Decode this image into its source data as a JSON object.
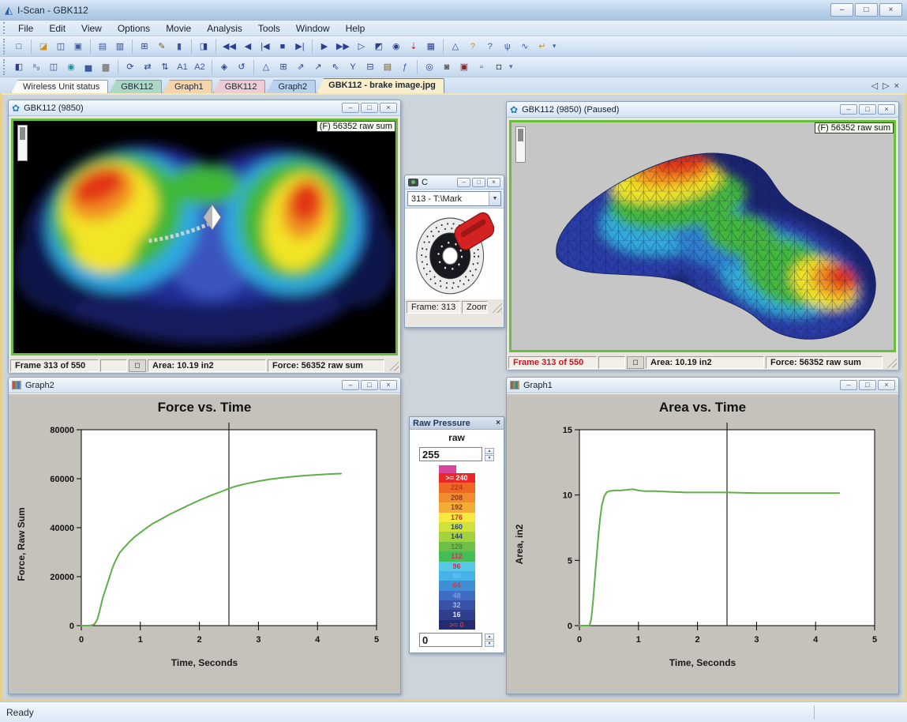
{
  "app": {
    "title": "I-Scan - GBK112",
    "logo_glyph": "◭",
    "status": "Ready"
  },
  "window_controls": {
    "minimize": "–",
    "maximize": "□",
    "close": "×"
  },
  "menu": {
    "items": [
      "File",
      "Edit",
      "View",
      "Options",
      "Movie",
      "Analysis",
      "Tools",
      "Window",
      "Help"
    ]
  },
  "toolbar1": {
    "icons": [
      {
        "n": "new-file",
        "g": "□"
      },
      {
        "n": "open-file",
        "g": "◪",
        "c": "#c89020",
        "s": 1
      },
      {
        "n": "open-remote",
        "g": "◫"
      },
      {
        "n": "save",
        "g": "▣",
        "c": "#3b5aa0"
      },
      {
        "n": "print",
        "g": "▤",
        "c": "#3b5aa0",
        "s": 1
      },
      {
        "n": "print-preview",
        "g": "▥"
      },
      {
        "n": "copy",
        "g": "⊞",
        "s": 1
      },
      {
        "n": "copy-graphics",
        "g": "✎",
        "c": "#7a5a20"
      },
      {
        "n": "cell-column",
        "g": "▮",
        "c": "#3b5aa0"
      },
      {
        "n": "equilibrate",
        "g": "◨",
        "s": 1
      },
      {
        "n": "rewind",
        "g": "◀◀",
        "s": 1
      },
      {
        "n": "frame-back",
        "g": "◀"
      },
      {
        "n": "first-frame",
        "g": "|◀"
      },
      {
        "n": "stop",
        "g": "■"
      },
      {
        "n": "last-frame",
        "g": "▶|"
      },
      {
        "n": "play",
        "g": "▶",
        "s": 1
      },
      {
        "n": "fast-forward",
        "g": "▶▶"
      },
      {
        "n": "play-to-marker",
        "g": "▷"
      },
      {
        "n": "movie-options",
        "g": "◩"
      },
      {
        "n": "find-frame",
        "g": "◉"
      },
      {
        "n": "threshold-down",
        "g": "⇣",
        "c": "#c02020"
      },
      {
        "n": "frame-list",
        "g": "▦"
      },
      {
        "n": "angle-graph",
        "g": "△",
        "s": 1
      },
      {
        "n": "help",
        "g": "?",
        "c": "#c89800"
      },
      {
        "n": "context-help",
        "g": "?",
        "c": "#3b5aa0"
      },
      {
        "n": "wireless",
        "g": "ψ",
        "c": "#3b5aa0"
      },
      {
        "n": "signal",
        "g": "∿",
        "c": "#3b5aa0"
      },
      {
        "n": "exit",
        "g": "↵",
        "c": "#c89020"
      }
    ]
  },
  "toolbar2": {
    "icons": [
      {
        "n": "contrast",
        "g": "◧"
      },
      {
        "n": "decimal-display",
        "g": "⁸₉",
        "c": "#3b5aa0"
      },
      {
        "n": "cell-grid",
        "g": "◫"
      },
      {
        "n": "drop-marker",
        "g": "◉",
        "c": "#2090a0"
      },
      {
        "n": "bar-graph-1",
        "g": "▅",
        "c": "#3b5aa0"
      },
      {
        "n": "bar-graph-2",
        "g": "▆",
        "c": "#8a8a8a"
      },
      {
        "n": "rotate",
        "g": "⟳",
        "s": 1
      },
      {
        "n": "swap-horizontal",
        "g": "⇄"
      },
      {
        "n": "swap-vertical",
        "g": "⇅"
      },
      {
        "n": "average-1",
        "g": "A1",
        "c": "#3b5aa0"
      },
      {
        "n": "average-2",
        "g": "A2",
        "c": "#3b5aa0"
      },
      {
        "n": "orient",
        "g": "◈",
        "s": 1
      },
      {
        "n": "rotate-left",
        "g": "↺"
      },
      {
        "n": "peak",
        "g": "△",
        "s": 1
      },
      {
        "n": "grid-view",
        "g": "⊞"
      },
      {
        "n": "graph-up",
        "g": "⇗"
      },
      {
        "n": "graph-open",
        "g": "↗"
      },
      {
        "n": "graph-pointer",
        "g": "⇖"
      },
      {
        "n": "split-y",
        "g": "Y"
      },
      {
        "n": "column-report",
        "g": "⊟"
      },
      {
        "n": "report",
        "g": "▤",
        "c": "#7a5a20"
      },
      {
        "n": "graph-function",
        "g": "ƒ",
        "c": "#3b5aa0"
      },
      {
        "n": "projector",
        "g": "◎",
        "s": 1
      },
      {
        "n": "video-camera",
        "g": "◙",
        "c": "#5a5a5a"
      },
      {
        "n": "film-audio",
        "g": "▣",
        "c": "#8a2020"
      },
      {
        "n": "selection-box",
        "g": "▫"
      },
      {
        "n": "snapshot",
        "g": "◘",
        "c": "#5a5a5a"
      }
    ]
  },
  "tabs": {
    "active_index": 5,
    "controls": {
      "prev": "◁",
      "next": "▷",
      "close": "×"
    },
    "items": [
      {
        "label": "Wireless Unit status",
        "color": "#fafaf6"
      },
      {
        "label": "GBK112",
        "color": "#abd9c6"
      },
      {
        "label": "Graph1",
        "color": "#f5d3ab"
      },
      {
        "label": "GBK112",
        "color": "#edccd6"
      },
      {
        "label": "Graph2",
        "color": "#b8d1ee"
      },
      {
        "label": "GBK112 - brake image.jpg",
        "color": "#f8eecb"
      }
    ]
  },
  "windows": {
    "map2d_title": "GBK112 (9850)",
    "map3d_title": "GBK112 (9850) (Paused)",
    "camera_title": "C",
    "legend_title": "Raw Pressure",
    "graph2_title": "Graph2",
    "graph1_title": "Graph1"
  },
  "map2d": {
    "overlay": "(F) 56352 raw sum",
    "frame": "Frame 313 of 550",
    "area": "Area: 10.19 in2",
    "force": "Force: 56352 raw sum",
    "box_glyph": "◻"
  },
  "map3d": {
    "overlay": "(F) 56352 raw sum",
    "frame": "Frame 313 of 550",
    "area": "Area: 10.19 in2",
    "force": "Force: 56352 raw sum",
    "box_glyph": "◻"
  },
  "camera": {
    "combo_value": "313 - T:\\Mark",
    "combo_arrow": "▼",
    "frame": "Frame: 313",
    "zoom": "Zoom"
  },
  "legend": {
    "unit": "raw",
    "max_value": "255",
    "min_value": "0",
    "spin_up": "▲",
    "spin_down": "▼",
    "cap_color": "#d8459c",
    "segments": [
      {
        "label": ">= 240",
        "color": "#e82727",
        "text": "#ffffff"
      },
      {
        "label": "224",
        "color": "#ee6723",
        "text": "#b8391d"
      },
      {
        "label": "208",
        "color": "#f18b2d",
        "text": "#8a3a20"
      },
      {
        "label": "192",
        "color": "#f3ad35",
        "text": "#8a3a20"
      },
      {
        "label": "176",
        "color": "#f5e83e",
        "text": "#b8391d"
      },
      {
        "label": "160",
        "color": "#cfe13c",
        "text": "#2a3f8f"
      },
      {
        "label": "144",
        "color": "#a3d23c",
        "text": "#2a3f8f"
      },
      {
        "label": "128",
        "color": "#6dbf45",
        "text": "#4a8a3a"
      },
      {
        "label": "112",
        "color": "#45bd55",
        "text": "#c03a50"
      },
      {
        "label": "96",
        "color": "#59c8e8",
        "text": "#c03a50"
      },
      {
        "label": "80",
        "color": "#45b2ea",
        "text": "#6ac4f0"
      },
      {
        "label": "64",
        "color": "#3f8fd6",
        "text": "#c04040"
      },
      {
        "label": "48",
        "color": "#3f6cc4",
        "text": "#8898d8"
      },
      {
        "label": "32",
        "color": "#3853a6",
        "text": "#aab4e0"
      },
      {
        "label": "16",
        "color": "#2f3f8e",
        "text": "#e0e4f4"
      },
      {
        "label": ">= 0",
        "color": "#232c6e",
        "text": "#c03a50"
      }
    ]
  },
  "chart_data": [
    {
      "type": "line",
      "title": "Force vs. Time",
      "xlabel": "Time, Seconds",
      "ylabel": "Force, Raw Sum",
      "xlim": [
        0,
        5
      ],
      "ylim": [
        0,
        80000
      ],
      "xticks": [
        "0",
        "1",
        "2",
        "3",
        "4",
        "5"
      ],
      "yticks": [
        "0",
        "20000",
        "40000",
        "60000",
        "80000"
      ],
      "cursor_x": 2.5,
      "line_color": "#5fae4a",
      "grid": false,
      "legend_position": "none",
      "points": [
        [
          0,
          0
        ],
        [
          0.15,
          0
        ],
        [
          0.22,
          500
        ],
        [
          0.27,
          2500
        ],
        [
          0.3,
          5000
        ],
        [
          0.33,
          8000
        ],
        [
          0.36,
          11000
        ],
        [
          0.4,
          14000
        ],
        [
          0.44,
          17000
        ],
        [
          0.48,
          20000
        ],
        [
          0.52,
          23000
        ],
        [
          0.56,
          25500
        ],
        [
          0.6,
          27500
        ],
        [
          0.65,
          29800
        ],
        [
          0.7,
          31200
        ],
        [
          0.75,
          32500
        ],
        [
          0.8,
          33800
        ],
        [
          0.9,
          36200
        ],
        [
          1,
          38000
        ],
        [
          1.1,
          39800
        ],
        [
          1.2,
          41500
        ],
        [
          1.35,
          43500
        ],
        [
          1.5,
          45500
        ],
        [
          1.65,
          47200
        ],
        [
          1.8,
          49000
        ],
        [
          2,
          51200
        ],
        [
          2.2,
          53200
        ],
        [
          2.4,
          55000
        ],
        [
          2.5,
          56000
        ],
        [
          2.6,
          56800
        ],
        [
          2.8,
          58000
        ],
        [
          3,
          59000
        ],
        [
          3.2,
          59800
        ],
        [
          3.4,
          60400
        ],
        [
          3.6,
          60900
        ],
        [
          3.8,
          61300
        ],
        [
          4,
          61600
        ],
        [
          4.2,
          61900
        ],
        [
          4.4,
          62100
        ]
      ]
    },
    {
      "type": "line",
      "title": "Area vs. Time",
      "xlabel": "Time, Seconds",
      "ylabel": "Area, in2",
      "xlim": [
        0,
        5
      ],
      "ylim": [
        0,
        15
      ],
      "xticks": [
        "0",
        "1",
        "2",
        "3",
        "4",
        "5"
      ],
      "yticks": [
        "0",
        "5",
        "10",
        "15"
      ],
      "cursor_x": 2.5,
      "line_color": "#5fae4a",
      "grid": false,
      "legend_position": "none",
      "points": [
        [
          0,
          0
        ],
        [
          0.17,
          0
        ],
        [
          0.2,
          0.5
        ],
        [
          0.23,
          1.8
        ],
        [
          0.26,
          3.5
        ],
        [
          0.29,
          5.2
        ],
        [
          0.32,
          6.8
        ],
        [
          0.35,
          8.2
        ],
        [
          0.38,
          9.2
        ],
        [
          0.42,
          9.9
        ],
        [
          0.46,
          10.2
        ],
        [
          0.5,
          10.3
        ],
        [
          0.6,
          10.35
        ],
        [
          0.7,
          10.35
        ],
        [
          0.8,
          10.4
        ],
        [
          0.9,
          10.45
        ],
        [
          1,
          10.35
        ],
        [
          1.1,
          10.3
        ],
        [
          1.3,
          10.3
        ],
        [
          1.5,
          10.25
        ],
        [
          1.8,
          10.2
        ],
        [
          2,
          10.2
        ],
        [
          2.5,
          10.2
        ],
        [
          3,
          10.15
        ],
        [
          3.5,
          10.15
        ],
        [
          4,
          10.15
        ],
        [
          4.4,
          10.15
        ]
      ]
    }
  ]
}
